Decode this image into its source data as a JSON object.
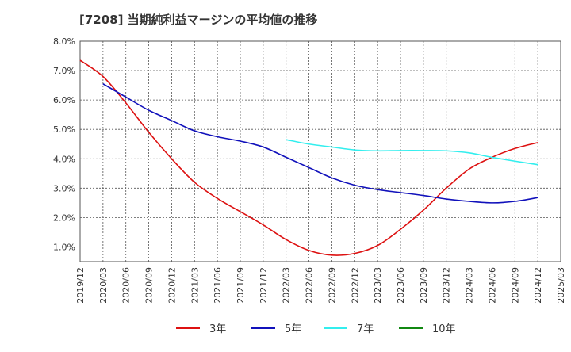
{
  "chart_data": {
    "type": "line",
    "title": "[7208]  当期純利益マージンの平均値の推移",
    "xlabel": "",
    "ylabel": "",
    "x": [
      "2019/12",
      "2020/03",
      "2020/06",
      "2020/09",
      "2020/12",
      "2021/03",
      "2021/06",
      "2021/09",
      "2021/12",
      "2022/03",
      "2022/06",
      "2022/09",
      "2022/12",
      "2023/03",
      "2023/06",
      "2023/09",
      "2023/12",
      "2024/03",
      "2024/06",
      "2024/09",
      "2024/12",
      "2025/03"
    ],
    "yticks": [
      1.0,
      2.0,
      3.0,
      4.0,
      5.0,
      6.0,
      7.0,
      8.0
    ],
    "ytick_labels": [
      "1.0%",
      "2.0%",
      "3.0%",
      "4.0%",
      "5.0%",
      "6.0%",
      "7.0%",
      "8.0%"
    ],
    "ylim": [
      0.5,
      8.0
    ],
    "grid": true,
    "legend_position": "bottom",
    "series": [
      {
        "name": "3年",
        "color": "#dd1111",
        "values": [
          7.35,
          6.8,
          5.9,
          4.9,
          4.0,
          3.2,
          2.65,
          2.2,
          1.75,
          1.25,
          0.88,
          0.72,
          0.78,
          1.05,
          1.6,
          2.25,
          3.0,
          3.65,
          4.05,
          4.35,
          4.55,
          null
        ]
      },
      {
        "name": "5年",
        "color": "#1111bb",
        "values": [
          null,
          6.55,
          6.1,
          5.65,
          5.3,
          4.95,
          4.75,
          4.6,
          4.4,
          4.05,
          3.7,
          3.35,
          3.1,
          2.95,
          2.85,
          2.75,
          2.63,
          2.55,
          2.5,
          2.55,
          2.68,
          null
        ]
      },
      {
        "name": "7年",
        "color": "#33eeee",
        "values": [
          null,
          null,
          null,
          null,
          null,
          null,
          null,
          null,
          null,
          4.65,
          4.5,
          4.4,
          4.3,
          4.27,
          4.28,
          4.28,
          4.27,
          4.2,
          4.05,
          3.92,
          3.8,
          null
        ]
      },
      {
        "name": "10年",
        "color": "#118811",
        "values": [
          null,
          null,
          null,
          null,
          null,
          null,
          null,
          null,
          null,
          null,
          null,
          null,
          null,
          null,
          null,
          null,
          null,
          null,
          null,
          null,
          null,
          null
        ]
      }
    ]
  }
}
